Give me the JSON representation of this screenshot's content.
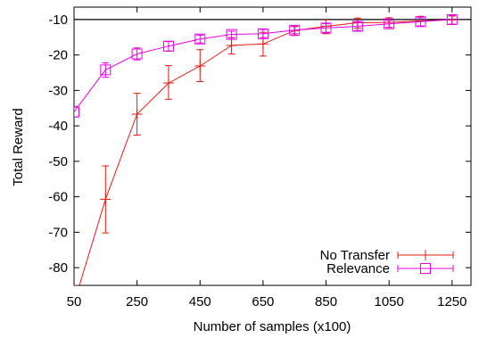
{
  "chart_data": {
    "type": "line",
    "xlabel": "Number of samples (x100)",
    "ylabel": "Total Reward",
    "xlim": [
      50,
      1310
    ],
    "ylim": [
      -85,
      -6.5
    ],
    "x_ticks": [
      50,
      250,
      450,
      650,
      850,
      1050,
      1250
    ],
    "x_tick_labels": [
      "50",
      "250",
      "450",
      "650",
      "850",
      "1050",
      "1250"
    ],
    "y_ticks": [
      -80,
      -70,
      -60,
      -50,
      -40,
      -30,
      -20,
      -10
    ],
    "y_tick_labels": [
      "-80",
      "-70",
      "-60",
      "-50",
      "-40",
      "-30",
      "-20",
      "-10"
    ],
    "reference_line_y": -10,
    "grid": false,
    "legend_position": "bottom-right",
    "x": [
      50,
      150,
      250,
      350,
      450,
      550,
      650,
      750,
      850,
      950,
      1050,
      1150,
      1250
    ],
    "series": [
      {
        "name": "No Transfer",
        "color": "#e8190f",
        "marker": "plus",
        "values": [
          -90,
          -60.7,
          -36.7,
          -27.9,
          -23.1,
          -17.3,
          -16.9,
          -13.1,
          -11.9,
          -10.9,
          -10.8,
          -10.4,
          -10.1
        ],
        "error_low": [
          -95,
          -70.2,
          -42.6,
          -32.5,
          -27.5,
          -19.7,
          -20.3,
          -14.5,
          -14.0,
          -12.4,
          -12.2,
          -11.8,
          -11.4
        ],
        "error_high": [
          -85,
          -51.3,
          -30.8,
          -23.0,
          -18.5,
          -15.1,
          -13.6,
          -11.9,
          -10.1,
          -9.6,
          -9.5,
          -9.1,
          -9.0
        ]
      },
      {
        "name": "Relevance",
        "color": "#e600e6",
        "marker": "square",
        "values": [
          -36.1,
          -24.2,
          -19.7,
          -17.5,
          -15.5,
          -14.2,
          -14.0,
          -13.0,
          -12.4,
          -11.9,
          -11.2,
          -10.6,
          -10.0
        ],
        "error_low": [
          -37.5,
          -26.3,
          -21.4,
          -18.9,
          -16.6,
          -15.2,
          -15.1,
          -14.0,
          -13.6,
          -13.1,
          -12.2,
          -11.8,
          -11.3
        ],
        "error_high": [
          -34.5,
          -22.2,
          -18.0,
          -16.2,
          -14.4,
          -13.3,
          -12.8,
          -12.0,
          -11.2,
          -10.8,
          -10.2,
          -9.5,
          -8.8
        ]
      }
    ]
  }
}
